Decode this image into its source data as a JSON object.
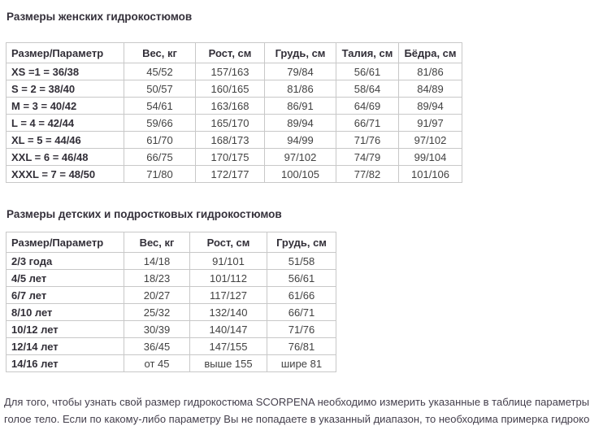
{
  "page": {
    "background": "#ffffff",
    "border_color": "#c8c8c8",
    "text_color": "#424242",
    "note_text_color": "#443f4c"
  },
  "women_table": {
    "title": "Размеры женских гидрокостюмов",
    "headers": [
      "Размер/Параметр",
      "Вес, кг",
      "Рост, см",
      "Грудь, см",
      "Талия, см",
      "Бёдра, см"
    ],
    "rows": [
      [
        "XS =1 = 36/38",
        "45/52",
        "157/163",
        "79/84",
        "56/61",
        "81/86"
      ],
      [
        "S = 2 = 38/40",
        "50/57",
        "160/165",
        "81/86",
        "58/64",
        "84/89"
      ],
      [
        "M = 3 = 40/42",
        "54/61",
        "163/168",
        "86/91",
        "64/69",
        "89/94"
      ],
      [
        "L = 4 = 42/44",
        "59/66",
        "165/170",
        "89/94",
        "66/71",
        "91/97"
      ],
      [
        "XL = 5 = 44/46",
        "61/70",
        "168/173",
        "94/99",
        "71/76",
        "97/102"
      ],
      [
        "XXL = 6 = 46/48",
        "66/75",
        "170/175",
        "97/102",
        "74/79",
        "99/104"
      ],
      [
        "XXXL = 7 = 48/50",
        "71/80",
        "172/177",
        "100/105",
        "77/82",
        "101/106"
      ]
    ]
  },
  "kids_table": {
    "title": "Размеры детских и подростковых гидрокостюмов",
    "headers": [
      "Размер/Параметр",
      "Вес, кг",
      "Рост, см",
      "Грудь, см"
    ],
    "rows": [
      [
        "2/3 года",
        "14/18",
        "91/101",
        "51/58"
      ],
      [
        "4/5 лет",
        "18/23",
        "101/112",
        "56/61"
      ],
      [
        "6/7 лет",
        "20/27",
        "117/127",
        "61/66"
      ],
      [
        "8/10 лет",
        "25/32",
        "132/140",
        "66/71"
      ],
      [
        "10/12 лет",
        "30/39",
        "140/147",
        "71/76"
      ],
      [
        "12/14 лет",
        "36/45",
        "147/155",
        "76/81"
      ],
      [
        "14/16 лет",
        "от 45",
        "выше 155",
        "шире 81"
      ]
    ]
  },
  "footer_note": {
    "lines": [
      "Для того, чтобы узнать свой размер гидрокостюма SCORPENA необходимо измерить указанные в таблице параметры на",
      "голое тело. Если по какому-либо параметру Вы не попадаете в указанный диапазон, то необходима примерка гидрокостюма"
    ]
  }
}
